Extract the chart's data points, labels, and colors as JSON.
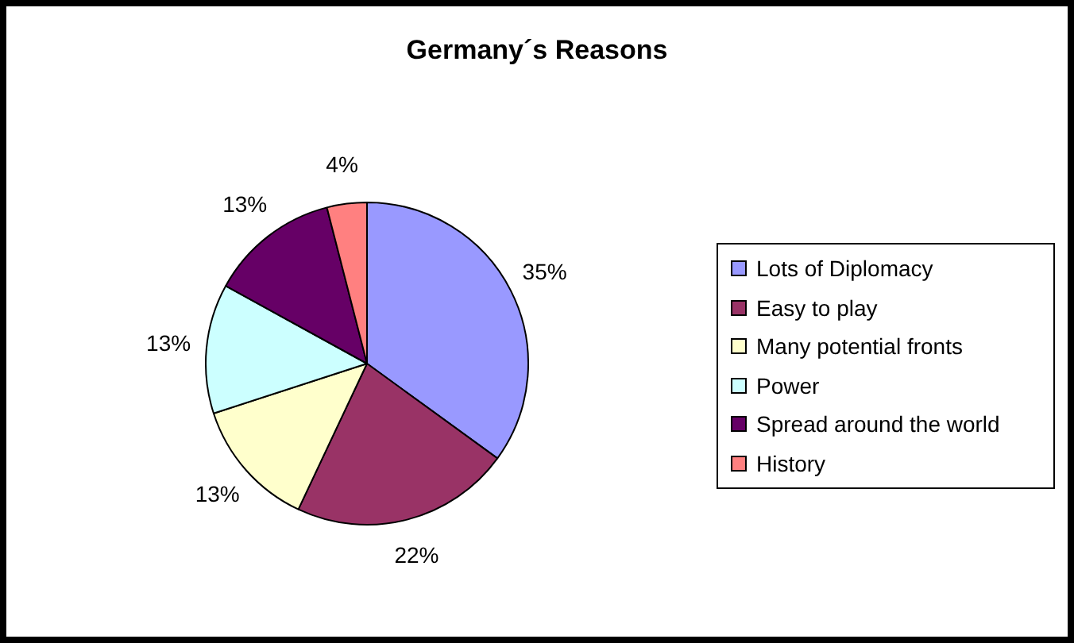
{
  "chart_data": {
    "type": "pie",
    "title": "Germany´s Reasons",
    "categories": [
      "Lots of Diplomacy",
      "Easy to play",
      "Many potential fronts",
      "Power",
      "Spread around the world",
      "History"
    ],
    "values": [
      35,
      22,
      13,
      13,
      13,
      4
    ],
    "colors": [
      "#9999ff",
      "#993366",
      "#ffffcc",
      "#ccffff",
      "#660066",
      "#ff8080"
    ],
    "value_labels": [
      "35%",
      "22%",
      "13%",
      "13%",
      "13%",
      "4%"
    ],
    "legend": "right"
  }
}
